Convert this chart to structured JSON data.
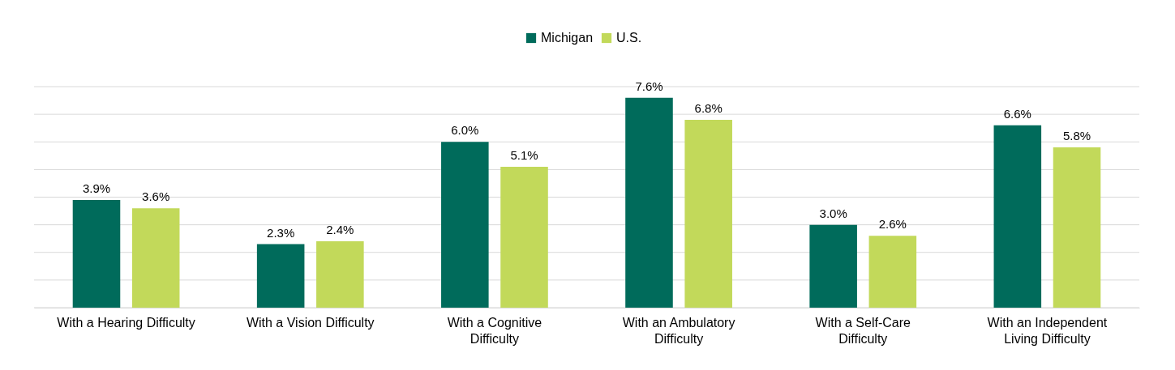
{
  "chart_data": {
    "type": "bar",
    "categories": [
      "With a Hearing Difficulty",
      "With a Vision Difficulty",
      "With a Cognitive Difficulty",
      "With an Ambulatory Difficulty",
      "With a Self-Care Difficulty",
      "With an Independent Living Difficulty"
    ],
    "series": [
      {
        "name": "Michigan",
        "color": "#006b5b",
        "values": [
          3.9,
          2.3,
          6.0,
          7.6,
          3.0,
          6.6
        ],
        "value_labels": [
          "3.9%",
          "2.3%",
          "6.0%",
          "7.6%",
          "3.0%",
          "6.6%"
        ]
      },
      {
        "name": "U.S.",
        "color": "#c2d95a",
        "values": [
          3.6,
          2.4,
          5.1,
          6.8,
          2.6,
          5.8
        ],
        "value_labels": [
          "3.6%",
          "2.4%",
          "5.1%",
          "6.8%",
          "2.6%",
          "5.8%"
        ]
      }
    ],
    "ylim": [
      0,
      8
    ],
    "yticks": [
      {
        "value": 0,
        "label": null
      },
      {
        "value": 1,
        "label": null
      },
      {
        "value": 2,
        "label": null
      },
      {
        "value": 3,
        "label": null
      },
      {
        "value": 4,
        "label": null
      },
      {
        "value": 5,
        "label": null
      },
      {
        "value": 6,
        "label": null
      },
      {
        "value": 7,
        "label": null
      },
      {
        "value": 8,
        "label": null
      }
    ],
    "grid": "y",
    "legend": "top",
    "tick_labels": "x"
  }
}
